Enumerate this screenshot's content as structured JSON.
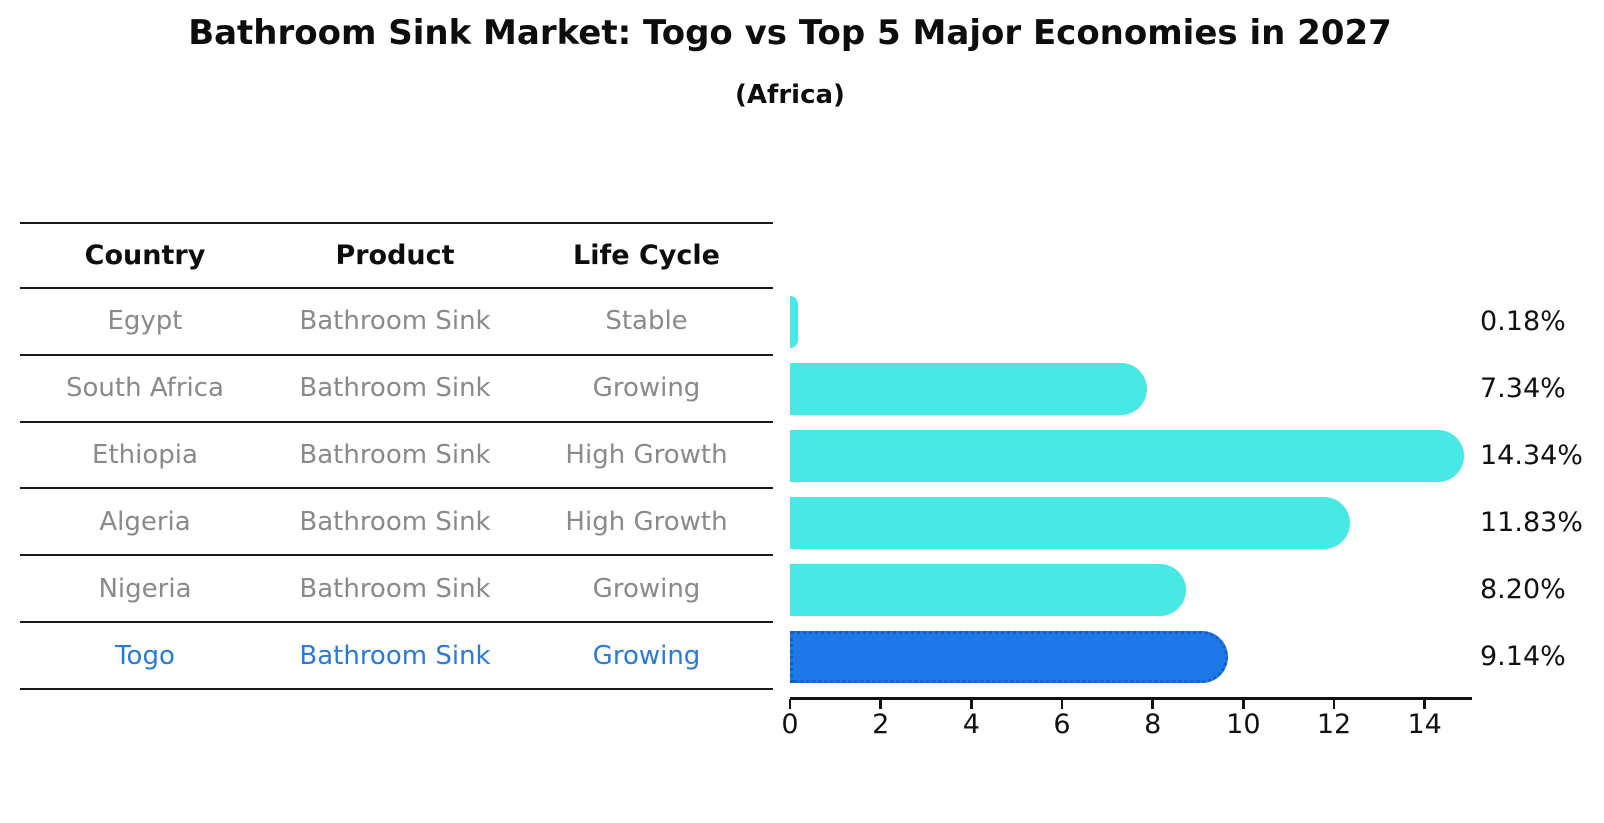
{
  "chart_data": {
    "type": "bar",
    "orientation": "horizontal",
    "title": "Bathroom Sink Market: Togo vs Top 5 Major Economies in 2027",
    "subtitle": "(Africa)",
    "categories": [
      "Egypt",
      "South Africa",
      "Ethiopia",
      "Algeria",
      "Nigeria",
      "Togo"
    ],
    "values": [
      0.18,
      7.34,
      14.34,
      11.83,
      8.2,
      9.14
    ],
    "value_labels": [
      "0.18%",
      "7.34%",
      "14.34%",
      "11.83%",
      "8.20%",
      "9.14%"
    ],
    "highlight_index": 5,
    "x_ticks": [
      0,
      2,
      4,
      6,
      8,
      10,
      12,
      14
    ],
    "xlim": [
      0,
      15
    ],
    "xlabel": "",
    "ylabel": "",
    "grid": false,
    "legend": "none"
  },
  "table": {
    "columns": [
      "Country",
      "Product",
      "Life Cycle"
    ],
    "rows": [
      {
        "country": "Egypt",
        "product": "Bathroom Sink",
        "life_cycle": "Stable",
        "highlight": false
      },
      {
        "country": "South Africa",
        "product": "Bathroom Sink",
        "life_cycle": "Growing",
        "highlight": false
      },
      {
        "country": "Ethiopia",
        "product": "Bathroom Sink",
        "life_cycle": "High Growth",
        "highlight": false
      },
      {
        "country": "Algeria",
        "product": "Bathroom Sink",
        "life_cycle": "High Growth",
        "highlight": false
      },
      {
        "country": "Nigeria",
        "product": "Bathroom Sink",
        "life_cycle": "Growing",
        "highlight": false
      },
      {
        "country": "Togo",
        "product": "Bathroom Sink",
        "life_cycle": "Growing",
        "highlight": true
      }
    ]
  },
  "colors": {
    "bar": "#48e8e4",
    "highlight_bar": "#1e78e8",
    "highlight_border": "#135dd0",
    "row_text": "#8a8a8a",
    "highlight_text": "#2a7adb",
    "header_text": "#0d0d0d",
    "axis": "#111111"
  }
}
